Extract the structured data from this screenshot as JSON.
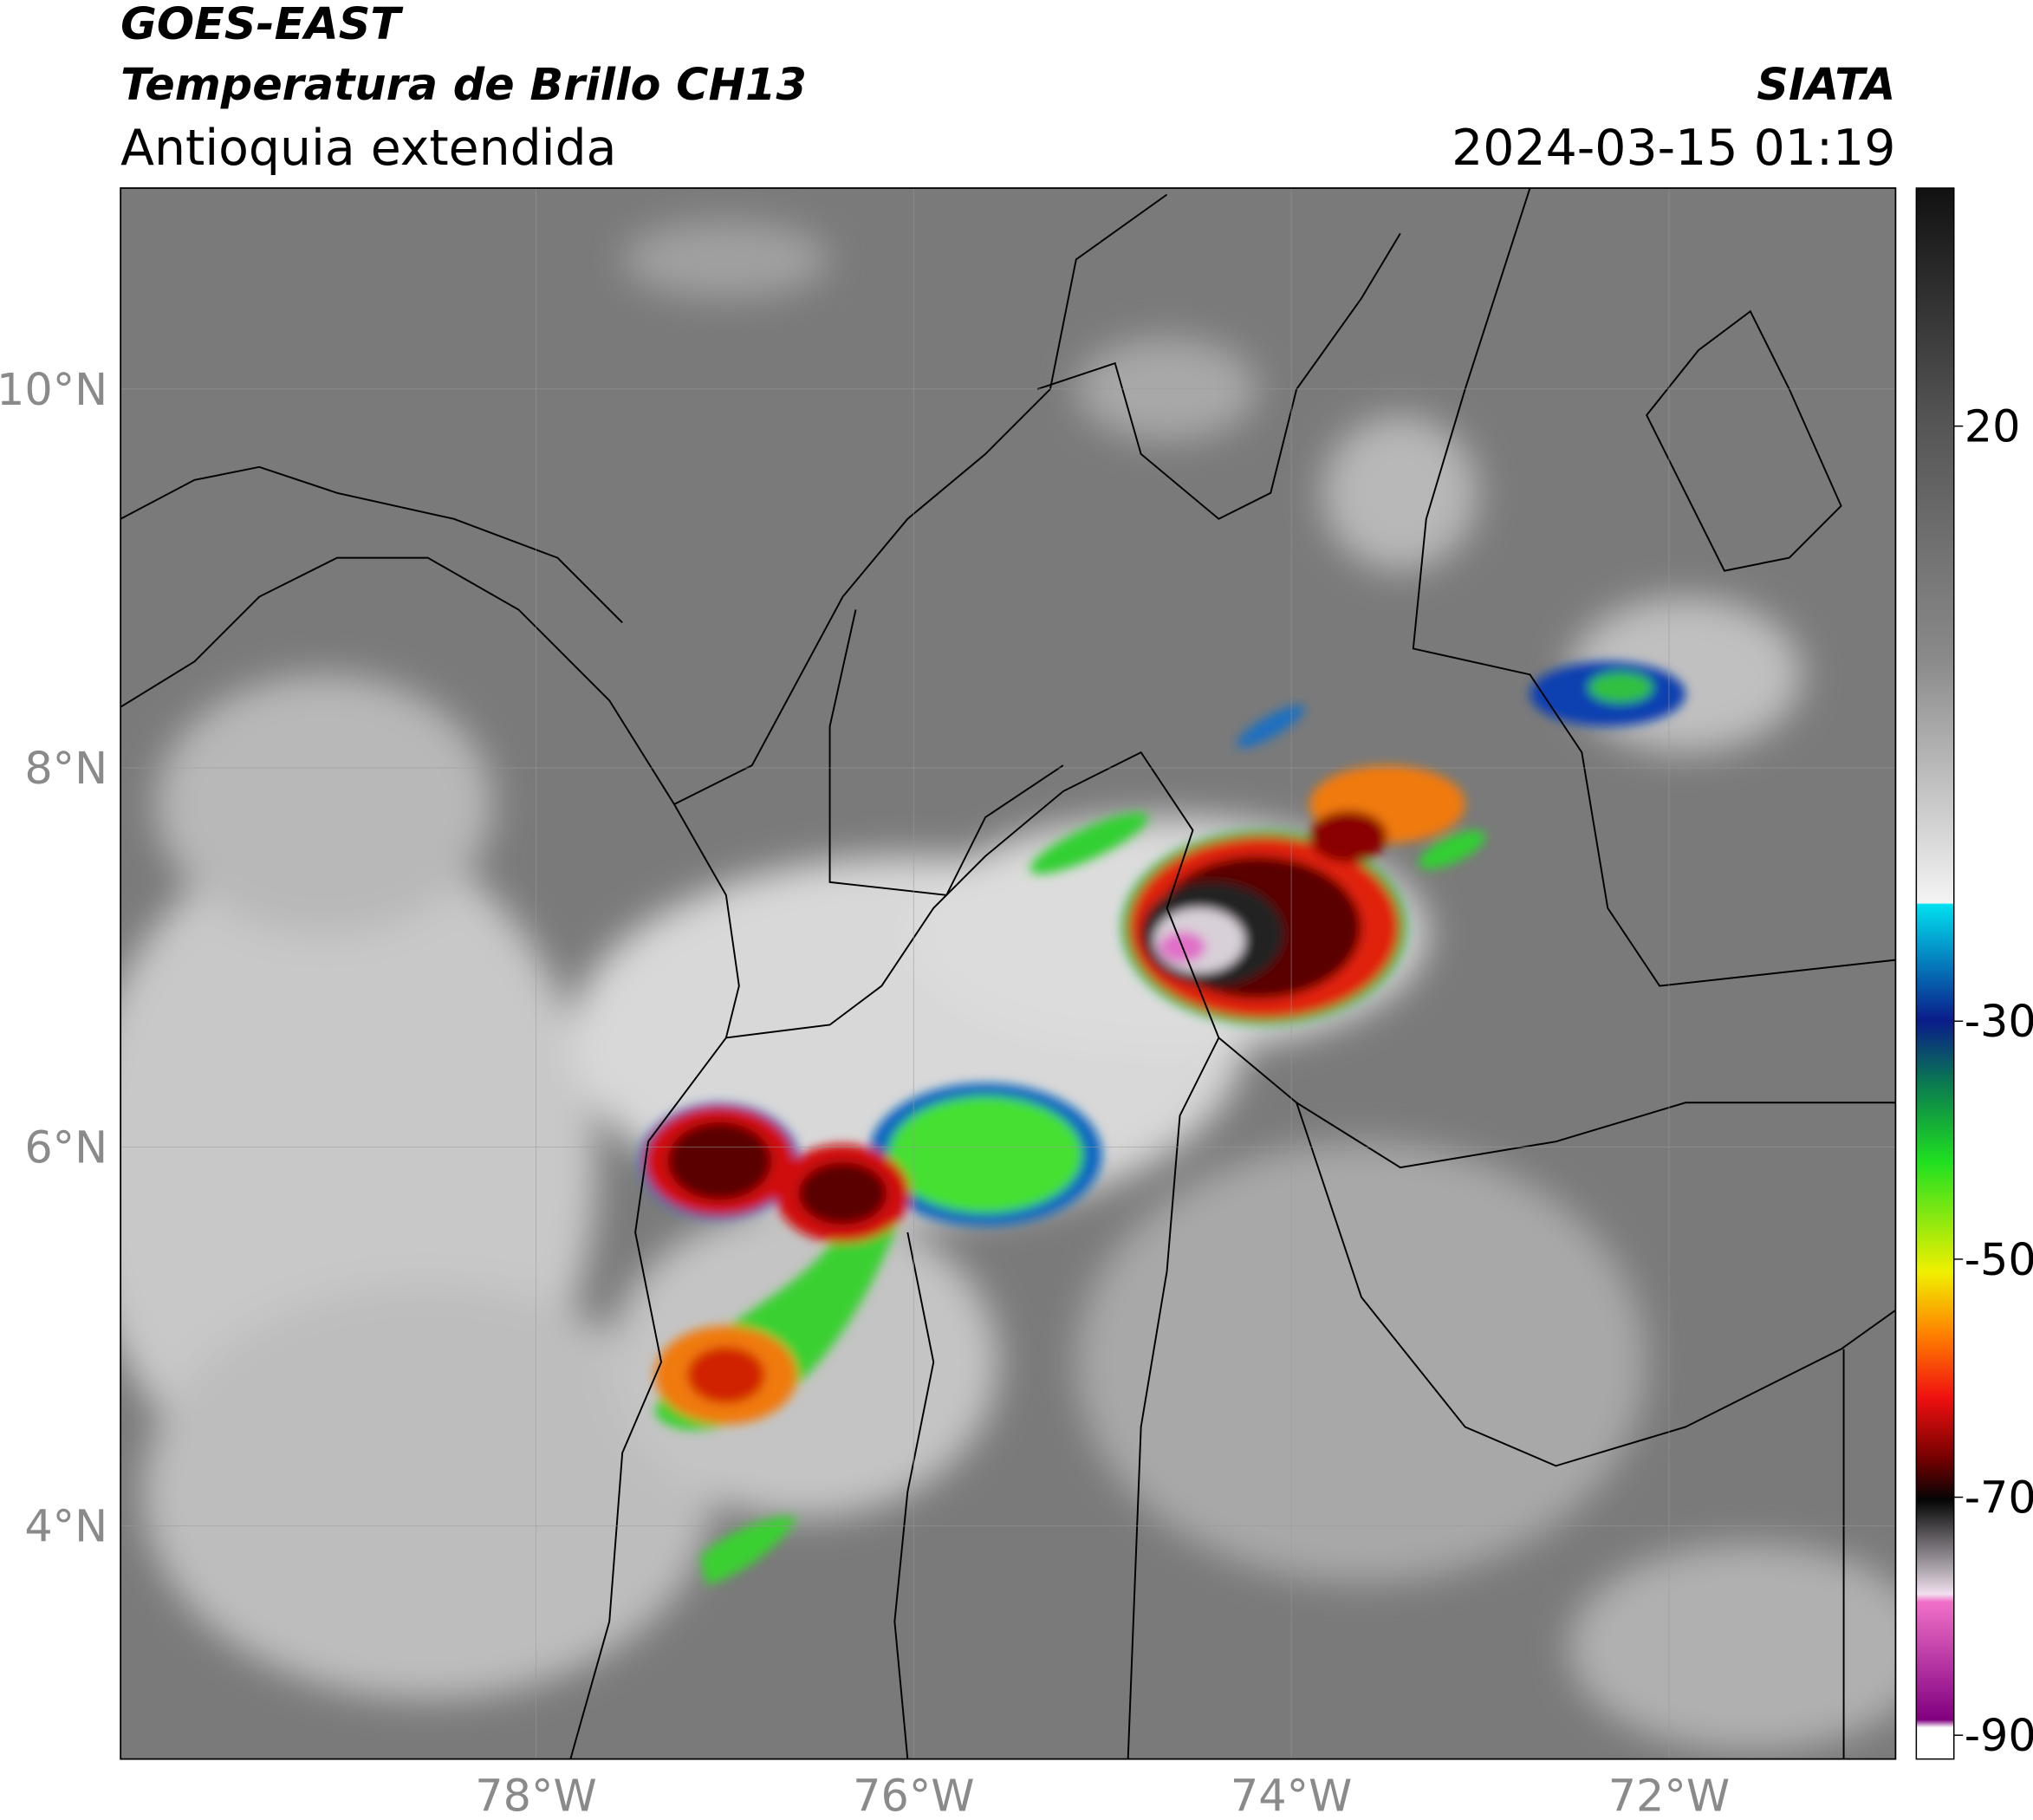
{
  "header": {
    "satellite": "GOES-EAST",
    "product": "Temperatura de Brillo CH13",
    "region": "Antioquia extendida",
    "source": "SIATA",
    "datetime": "2024-03-15 01:19"
  },
  "map": {
    "lon_range": [
      -80.2,
      -70.8
    ],
    "lat_range": [
      2.77,
      11.06
    ],
    "lon_ticks": [
      {
        "value": -78,
        "label": "78°W"
      },
      {
        "value": -76,
        "label": "76°W"
      },
      {
        "value": -74,
        "label": "74°W"
      },
      {
        "value": -72,
        "label": "72°W"
      }
    ],
    "lat_ticks": [
      {
        "value": 10,
        "label": "10°N"
      },
      {
        "value": 8,
        "label": "8°N"
      },
      {
        "value": 6,
        "label": "6°N"
      },
      {
        "value": 4,
        "label": "4°N"
      }
    ],
    "grid": true
  },
  "colorbar": {
    "range": [
      -92,
      40
    ],
    "ticks": [
      20,
      -30,
      -50,
      -70,
      -90
    ]
  }
}
